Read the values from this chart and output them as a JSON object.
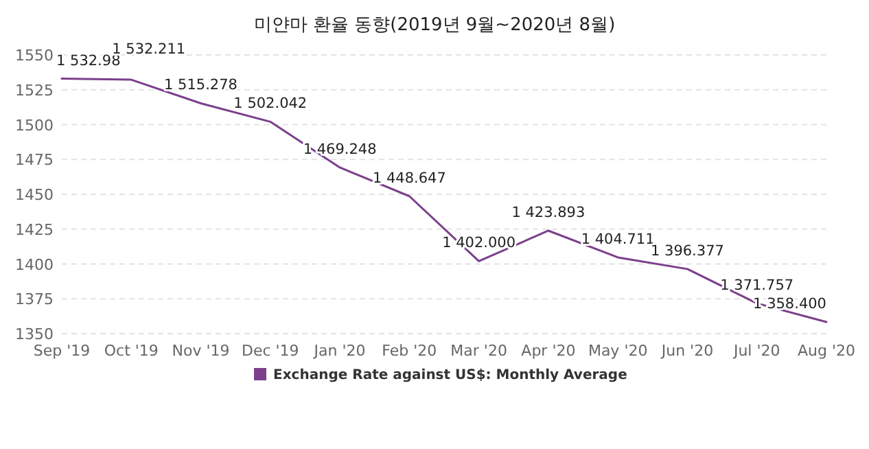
{
  "chart_data": {
    "type": "line",
    "title": "미얀마 환율 동향(2019년 9월~2020년 8월)",
    "categories": [
      "Sep '19",
      "Oct '19",
      "Nov '19",
      "Dec '19",
      "Jan '20",
      "Feb '20",
      "Mar '20",
      "Apr '20",
      "May '20",
      "Jun '20",
      "Jul '20",
      "Aug '20"
    ],
    "series": [
      {
        "name": "Exchange Rate against US$: Monthly Average",
        "color": "#7b3f8c",
        "values": [
          1532.98,
          1532.211,
          1515.278,
          1502.042,
          1469.248,
          1448.647,
          1402.0,
          1423.893,
          1404.711,
          1396.377,
          1371.757,
          1358.4
        ],
        "value_labels": [
          "1 532.98",
          "1 532.211",
          "1 515.278",
          "1 502.042",
          "1 469.248",
          "1 448.647",
          "1 402.000",
          "1 423.893",
          "1 404.711",
          "1 396.377",
          "1 371.757",
          "1 358.400"
        ]
      }
    ],
    "ylim": [
      1350,
      1550
    ],
    "yticks": [
      1350,
      1375,
      1400,
      1425,
      1450,
      1475,
      1500,
      1525,
      1550
    ],
    "grid": "y",
    "legend": "bottom",
    "marker": "none",
    "line_style": "solid"
  }
}
